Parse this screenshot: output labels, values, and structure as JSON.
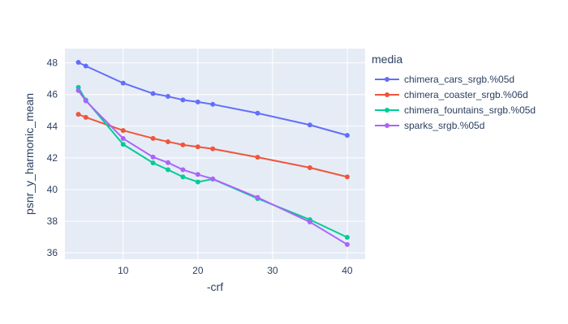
{
  "chart_data": {
    "type": "line",
    "xlabel": "-crf",
    "ylabel": "psnr_y_harmonic_mean",
    "xlim": [
      2.2,
      42.4
    ],
    "ylim": [
      35.6,
      48.9
    ],
    "xticks": [
      10,
      20,
      30,
      40
    ],
    "yticks": [
      36,
      38,
      40,
      42,
      44,
      46,
      48
    ],
    "legend_title": "media",
    "legend_position": "right",
    "grid": true,
    "series": [
      {
        "name": "chimera_cars_srgb.%05d",
        "color": "#636efa",
        "x": [
          4,
          5,
          10,
          14,
          16,
          18,
          20,
          22,
          28,
          35,
          40
        ],
        "y": [
          48.03,
          47.8,
          46.72,
          46.06,
          45.88,
          45.66,
          45.53,
          45.38,
          44.82,
          44.08,
          43.42
        ]
      },
      {
        "name": "chimera_coaster_srgb.%06d",
        "color": "#ef553b",
        "x": [
          4,
          5,
          10,
          14,
          16,
          18,
          20,
          22,
          28,
          35,
          40
        ],
        "y": [
          44.75,
          44.56,
          43.73,
          43.23,
          43.02,
          42.82,
          42.7,
          42.57,
          42.04,
          41.38,
          40.8
        ]
      },
      {
        "name": "chimera_fountains_srgb.%05d",
        "color": "#00cc96",
        "x": [
          4,
          5,
          10,
          14,
          16,
          18,
          20,
          22,
          28,
          35,
          40
        ],
        "y": [
          46.45,
          45.65,
          42.85,
          41.68,
          41.25,
          40.8,
          40.48,
          40.66,
          39.43,
          38.1,
          36.98
        ]
      },
      {
        "name": "sparks_srgb.%05d",
        "color": "#ab63fa",
        "x": [
          4,
          5,
          10,
          14,
          16,
          18,
          20,
          22,
          28,
          35,
          40
        ],
        "y": [
          46.25,
          45.6,
          43.22,
          42.05,
          41.7,
          41.25,
          40.95,
          40.67,
          39.5,
          37.95,
          36.53
        ]
      }
    ]
  }
}
